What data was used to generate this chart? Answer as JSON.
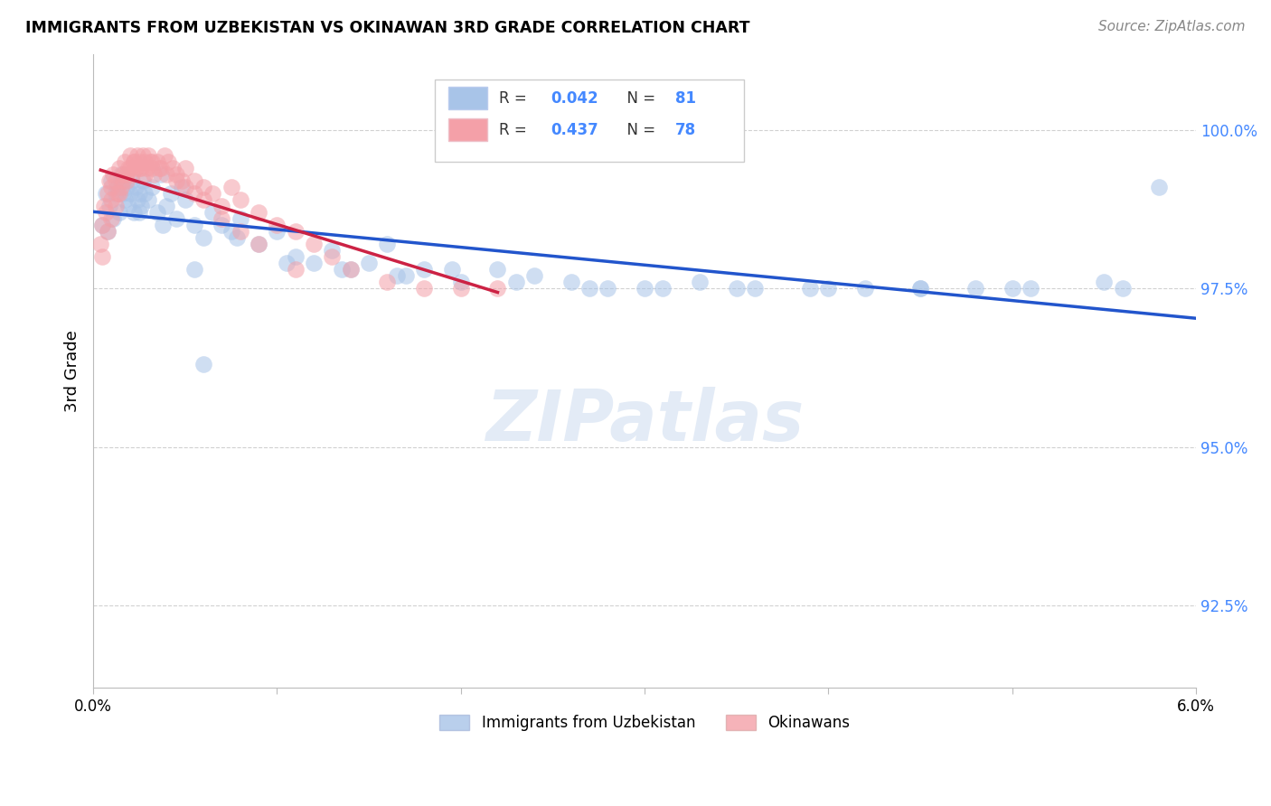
{
  "title": "IMMIGRANTS FROM UZBEKISTAN VS OKINAWAN 3RD GRADE CORRELATION CHART",
  "source": "Source: ZipAtlas.com",
  "ylabel": "3rd Grade",
  "yticks": [
    92.5,
    95.0,
    97.5,
    100.0
  ],
  "xmin": 0.0,
  "xmax": 6.0,
  "ymin": 91.2,
  "ymax": 101.2,
  "blue_color": "#a8c4e8",
  "pink_color": "#f4a0a8",
  "blue_line_color": "#2255cc",
  "pink_line_color": "#cc2244",
  "watermark": "ZIPatlas",
  "blue_scatter_x": [
    0.05,
    0.07,
    0.09,
    0.1,
    0.11,
    0.12,
    0.13,
    0.14,
    0.15,
    0.16,
    0.17,
    0.18,
    0.19,
    0.2,
    0.21,
    0.22,
    0.23,
    0.24,
    0.25,
    0.26,
    0.27,
    0.28,
    0.3,
    0.32,
    0.35,
    0.37,
    0.4,
    0.42,
    0.45,
    0.48,
    0.5,
    0.55,
    0.6,
    0.65,
    0.7,
    0.75,
    0.8,
    0.9,
    1.0,
    1.1,
    1.2,
    1.3,
    1.4,
    1.5,
    1.6,
    1.7,
    1.8,
    2.0,
    2.2,
    2.4,
    2.6,
    2.8,
    3.0,
    3.3,
    3.6,
    3.9,
    4.2,
    4.5,
    4.8,
    5.1,
    5.5,
    5.8,
    0.08,
    0.15,
    0.25,
    0.38,
    0.55,
    0.78,
    1.05,
    1.35,
    1.65,
    1.95,
    2.3,
    2.7,
    3.1,
    3.5,
    4.0,
    4.5,
    5.0,
    5.6,
    0.6
  ],
  "blue_scatter_y": [
    98.5,
    99.0,
    98.8,
    99.2,
    98.6,
    99.0,
    99.1,
    98.7,
    99.3,
    99.0,
    98.9,
    99.1,
    98.8,
    99.0,
    99.2,
    98.7,
    99.1,
    98.9,
    99.0,
    98.8,
    99.2,
    99.0,
    98.9,
    99.1,
    98.7,
    99.3,
    98.8,
    99.0,
    98.6,
    99.1,
    98.9,
    98.5,
    98.3,
    98.7,
    98.5,
    98.4,
    98.6,
    98.2,
    98.4,
    98.0,
    97.9,
    98.1,
    97.8,
    97.9,
    98.2,
    97.7,
    97.8,
    97.6,
    97.8,
    97.7,
    97.6,
    97.5,
    97.5,
    97.6,
    97.5,
    97.5,
    97.5,
    97.5,
    97.5,
    97.5,
    97.6,
    99.1,
    98.4,
    99.2,
    98.7,
    98.5,
    97.8,
    98.3,
    97.9,
    97.8,
    97.7,
    97.8,
    97.6,
    97.5,
    97.5,
    97.5,
    97.5,
    97.5,
    97.5,
    97.5,
    96.3
  ],
  "pink_scatter_x": [
    0.04,
    0.05,
    0.06,
    0.07,
    0.08,
    0.09,
    0.1,
    0.1,
    0.11,
    0.12,
    0.13,
    0.14,
    0.15,
    0.16,
    0.17,
    0.18,
    0.19,
    0.2,
    0.21,
    0.22,
    0.23,
    0.24,
    0.25,
    0.26,
    0.27,
    0.28,
    0.29,
    0.3,
    0.31,
    0.32,
    0.33,
    0.35,
    0.37,
    0.39,
    0.41,
    0.43,
    0.45,
    0.48,
    0.5,
    0.55,
    0.6,
    0.65,
    0.7,
    0.75,
    0.8,
    0.9,
    1.0,
    1.1,
    1.2,
    1.3,
    1.4,
    1.6,
    1.8,
    2.0,
    2.2,
    0.05,
    0.08,
    0.1,
    0.12,
    0.14,
    0.16,
    0.18,
    0.2,
    0.22,
    0.25,
    0.28,
    0.32,
    0.36,
    0.4,
    0.45,
    0.5,
    0.55,
    0.6,
    0.7,
    0.8,
    0.9,
    1.1
  ],
  "pink_scatter_y": [
    98.2,
    98.5,
    98.8,
    98.7,
    99.0,
    99.2,
    98.9,
    99.1,
    99.3,
    99.2,
    99.0,
    99.4,
    99.1,
    99.3,
    99.5,
    99.2,
    99.4,
    99.6,
    99.3,
    99.5,
    99.4,
    99.6,
    99.5,
    99.4,
    99.6,
    99.5,
    99.4,
    99.6,
    99.5,
    99.4,
    99.3,
    99.5,
    99.4,
    99.6,
    99.5,
    99.4,
    99.3,
    99.2,
    99.4,
    99.2,
    99.1,
    99.0,
    98.8,
    99.1,
    98.9,
    98.7,
    98.5,
    98.4,
    98.2,
    98.0,
    97.8,
    97.6,
    97.5,
    97.5,
    97.5,
    98.0,
    98.4,
    98.6,
    98.8,
    99.0,
    99.2,
    99.3,
    99.4,
    99.5,
    99.4,
    99.3,
    99.5,
    99.4,
    99.3,
    99.2,
    99.1,
    99.0,
    98.9,
    98.6,
    98.4,
    98.2,
    97.8
  ]
}
